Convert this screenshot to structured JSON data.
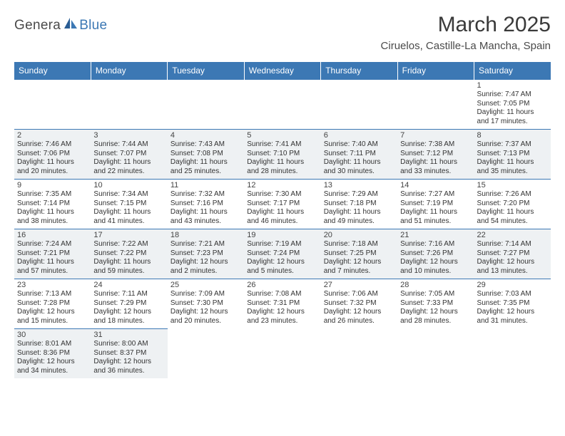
{
  "logo": {
    "p1": "Genera",
    "p2": "Blue"
  },
  "title": "March 2025",
  "location": "Ciruelos, Castille-La Mancha, Spain",
  "colors": {
    "header_bg": "#3c78b4",
    "header_fg": "#ffffff",
    "cell_border": "#3c78b4",
    "shade_bg": "#eef1f3",
    "text": "#333333"
  },
  "dow": [
    "Sunday",
    "Monday",
    "Tuesday",
    "Wednesday",
    "Thursday",
    "Friday",
    "Saturday"
  ],
  "weeks": [
    [
      null,
      null,
      null,
      null,
      null,
      null,
      {
        "n": "1",
        "sr": "Sunrise: 7:47 AM",
        "ss": "Sunset: 7:05 PM",
        "dl1": "Daylight: 11 hours",
        "dl2": "and 17 minutes.",
        "sh": false
      }
    ],
    [
      {
        "n": "2",
        "sr": "Sunrise: 7:46 AM",
        "ss": "Sunset: 7:06 PM",
        "dl1": "Daylight: 11 hours",
        "dl2": "and 20 minutes.",
        "sh": true
      },
      {
        "n": "3",
        "sr": "Sunrise: 7:44 AM",
        "ss": "Sunset: 7:07 PM",
        "dl1": "Daylight: 11 hours",
        "dl2": "and 22 minutes.",
        "sh": true
      },
      {
        "n": "4",
        "sr": "Sunrise: 7:43 AM",
        "ss": "Sunset: 7:08 PM",
        "dl1": "Daylight: 11 hours",
        "dl2": "and 25 minutes.",
        "sh": true
      },
      {
        "n": "5",
        "sr": "Sunrise: 7:41 AM",
        "ss": "Sunset: 7:10 PM",
        "dl1": "Daylight: 11 hours",
        "dl2": "and 28 minutes.",
        "sh": true
      },
      {
        "n": "6",
        "sr": "Sunrise: 7:40 AM",
        "ss": "Sunset: 7:11 PM",
        "dl1": "Daylight: 11 hours",
        "dl2": "and 30 minutes.",
        "sh": true
      },
      {
        "n": "7",
        "sr": "Sunrise: 7:38 AM",
        "ss": "Sunset: 7:12 PM",
        "dl1": "Daylight: 11 hours",
        "dl2": "and 33 minutes.",
        "sh": true
      },
      {
        "n": "8",
        "sr": "Sunrise: 7:37 AM",
        "ss": "Sunset: 7:13 PM",
        "dl1": "Daylight: 11 hours",
        "dl2": "and 35 minutes.",
        "sh": true
      }
    ],
    [
      {
        "n": "9",
        "sr": "Sunrise: 7:35 AM",
        "ss": "Sunset: 7:14 PM",
        "dl1": "Daylight: 11 hours",
        "dl2": "and 38 minutes.",
        "sh": false
      },
      {
        "n": "10",
        "sr": "Sunrise: 7:34 AM",
        "ss": "Sunset: 7:15 PM",
        "dl1": "Daylight: 11 hours",
        "dl2": "and 41 minutes.",
        "sh": false
      },
      {
        "n": "11",
        "sr": "Sunrise: 7:32 AM",
        "ss": "Sunset: 7:16 PM",
        "dl1": "Daylight: 11 hours",
        "dl2": "and 43 minutes.",
        "sh": false
      },
      {
        "n": "12",
        "sr": "Sunrise: 7:30 AM",
        "ss": "Sunset: 7:17 PM",
        "dl1": "Daylight: 11 hours",
        "dl2": "and 46 minutes.",
        "sh": false
      },
      {
        "n": "13",
        "sr": "Sunrise: 7:29 AM",
        "ss": "Sunset: 7:18 PM",
        "dl1": "Daylight: 11 hours",
        "dl2": "and 49 minutes.",
        "sh": false
      },
      {
        "n": "14",
        "sr": "Sunrise: 7:27 AM",
        "ss": "Sunset: 7:19 PM",
        "dl1": "Daylight: 11 hours",
        "dl2": "and 51 minutes.",
        "sh": false
      },
      {
        "n": "15",
        "sr": "Sunrise: 7:26 AM",
        "ss": "Sunset: 7:20 PM",
        "dl1": "Daylight: 11 hours",
        "dl2": "and 54 minutes.",
        "sh": false
      }
    ],
    [
      {
        "n": "16",
        "sr": "Sunrise: 7:24 AM",
        "ss": "Sunset: 7:21 PM",
        "dl1": "Daylight: 11 hours",
        "dl2": "and 57 minutes.",
        "sh": true
      },
      {
        "n": "17",
        "sr": "Sunrise: 7:22 AM",
        "ss": "Sunset: 7:22 PM",
        "dl1": "Daylight: 11 hours",
        "dl2": "and 59 minutes.",
        "sh": true
      },
      {
        "n": "18",
        "sr": "Sunrise: 7:21 AM",
        "ss": "Sunset: 7:23 PM",
        "dl1": "Daylight: 12 hours",
        "dl2": "and 2 minutes.",
        "sh": true
      },
      {
        "n": "19",
        "sr": "Sunrise: 7:19 AM",
        "ss": "Sunset: 7:24 PM",
        "dl1": "Daylight: 12 hours",
        "dl2": "and 5 minutes.",
        "sh": true
      },
      {
        "n": "20",
        "sr": "Sunrise: 7:18 AM",
        "ss": "Sunset: 7:25 PM",
        "dl1": "Daylight: 12 hours",
        "dl2": "and 7 minutes.",
        "sh": true
      },
      {
        "n": "21",
        "sr": "Sunrise: 7:16 AM",
        "ss": "Sunset: 7:26 PM",
        "dl1": "Daylight: 12 hours",
        "dl2": "and 10 minutes.",
        "sh": true
      },
      {
        "n": "22",
        "sr": "Sunrise: 7:14 AM",
        "ss": "Sunset: 7:27 PM",
        "dl1": "Daylight: 12 hours",
        "dl2": "and 13 minutes.",
        "sh": true
      }
    ],
    [
      {
        "n": "23",
        "sr": "Sunrise: 7:13 AM",
        "ss": "Sunset: 7:28 PM",
        "dl1": "Daylight: 12 hours",
        "dl2": "and 15 minutes.",
        "sh": false
      },
      {
        "n": "24",
        "sr": "Sunrise: 7:11 AM",
        "ss": "Sunset: 7:29 PM",
        "dl1": "Daylight: 12 hours",
        "dl2": "and 18 minutes.",
        "sh": false
      },
      {
        "n": "25",
        "sr": "Sunrise: 7:09 AM",
        "ss": "Sunset: 7:30 PM",
        "dl1": "Daylight: 12 hours",
        "dl2": "and 20 minutes.",
        "sh": false
      },
      {
        "n": "26",
        "sr": "Sunrise: 7:08 AM",
        "ss": "Sunset: 7:31 PM",
        "dl1": "Daylight: 12 hours",
        "dl2": "and 23 minutes.",
        "sh": false
      },
      {
        "n": "27",
        "sr": "Sunrise: 7:06 AM",
        "ss": "Sunset: 7:32 PM",
        "dl1": "Daylight: 12 hours",
        "dl2": "and 26 minutes.",
        "sh": false
      },
      {
        "n": "28",
        "sr": "Sunrise: 7:05 AM",
        "ss": "Sunset: 7:33 PM",
        "dl1": "Daylight: 12 hours",
        "dl2": "and 28 minutes.",
        "sh": false
      },
      {
        "n": "29",
        "sr": "Sunrise: 7:03 AM",
        "ss": "Sunset: 7:35 PM",
        "dl1": "Daylight: 12 hours",
        "dl2": "and 31 minutes.",
        "sh": false
      }
    ],
    [
      {
        "n": "30",
        "sr": "Sunrise: 8:01 AM",
        "ss": "Sunset: 8:36 PM",
        "dl1": "Daylight: 12 hours",
        "dl2": "and 34 minutes.",
        "sh": true
      },
      {
        "n": "31",
        "sr": "Sunrise: 8:00 AM",
        "ss": "Sunset: 8:37 PM",
        "dl1": "Daylight: 12 hours",
        "dl2": "and 36 minutes.",
        "sh": true
      },
      null,
      null,
      null,
      null,
      null
    ]
  ]
}
